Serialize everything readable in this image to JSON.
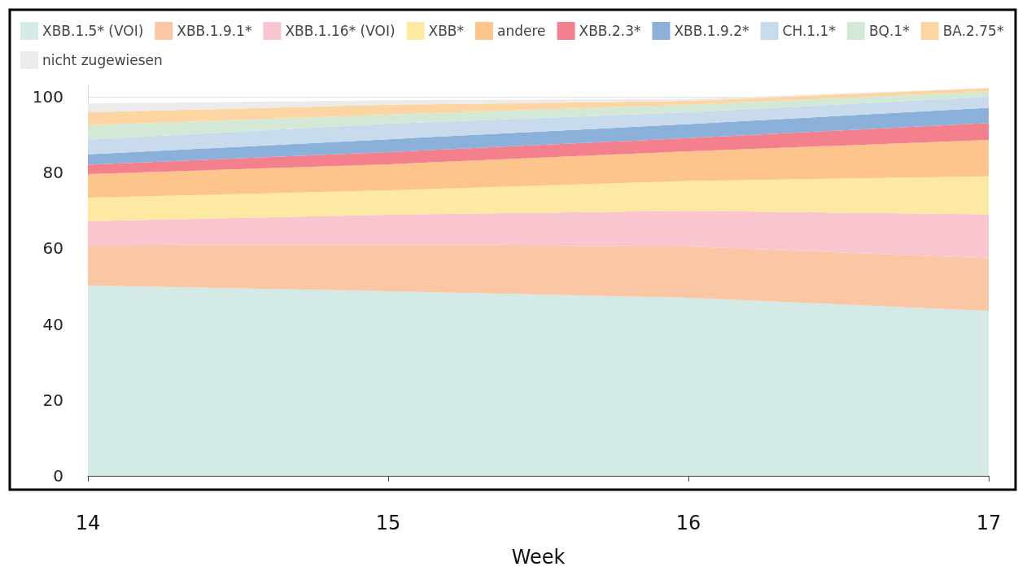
{
  "chart_data": {
    "type": "area",
    "stacked": true,
    "xlabel": "Week",
    "categories": [
      "14",
      "15",
      "16",
      "17"
    ],
    "ylim": [
      0,
      103
    ],
    "yticks": [
      0,
      20,
      40,
      60,
      80,
      100
    ],
    "grid": "y",
    "legend": "top",
    "marker": "none",
    "series": [
      {
        "name": "XBB.1.5* (VOI)",
        "color": "#d4eae6",
        "values": [
          50.2,
          48.7,
          47.0,
          43.5
        ]
      },
      {
        "name": "XBB.1.9.1*",
        "color": "#fbc6a3",
        "values": [
          10.5,
          12.2,
          13.5,
          13.9
        ]
      },
      {
        "name": "XBB.1.16* (VOI)",
        "color": "#f9c5cf",
        "values": [
          6.5,
          8.0,
          9.4,
          11.6
        ]
      },
      {
        "name": "XBB*",
        "color": "#fde9a2",
        "values": [
          6.2,
          6.4,
          7.9,
          10.0
        ]
      },
      {
        "name": "andere",
        "color": "#fdc48b",
        "values": [
          6.2,
          6.9,
          7.8,
          9.6
        ]
      },
      {
        "name": "XBB.2.3*",
        "color": "#f47f8d",
        "values": [
          2.5,
          3.2,
          3.5,
          4.5
        ]
      },
      {
        "name": "XBB.1.9.2*",
        "color": "#8bb0d9",
        "values": [
          2.7,
          3.4,
          3.7,
          4.0
        ]
      },
      {
        "name": "CH.1.1*",
        "color": "#c8dbed",
        "values": [
          3.9,
          4.1,
          3.1,
          2.9
        ]
      },
      {
        "name": "BQ.1*",
        "color": "#d3e9d5",
        "values": [
          3.8,
          2.4,
          2.0,
          1.4
        ]
      },
      {
        "name": "BA.2.75*",
        "color": "#fdd5a2",
        "values": [
          3.4,
          2.6,
          1.0,
          0.9
        ]
      },
      {
        "name": "nicht zugewiesen",
        "color": "#ebebeb",
        "values": [
          2.3,
          1.2,
          0.5,
          0.0
        ]
      }
    ]
  }
}
